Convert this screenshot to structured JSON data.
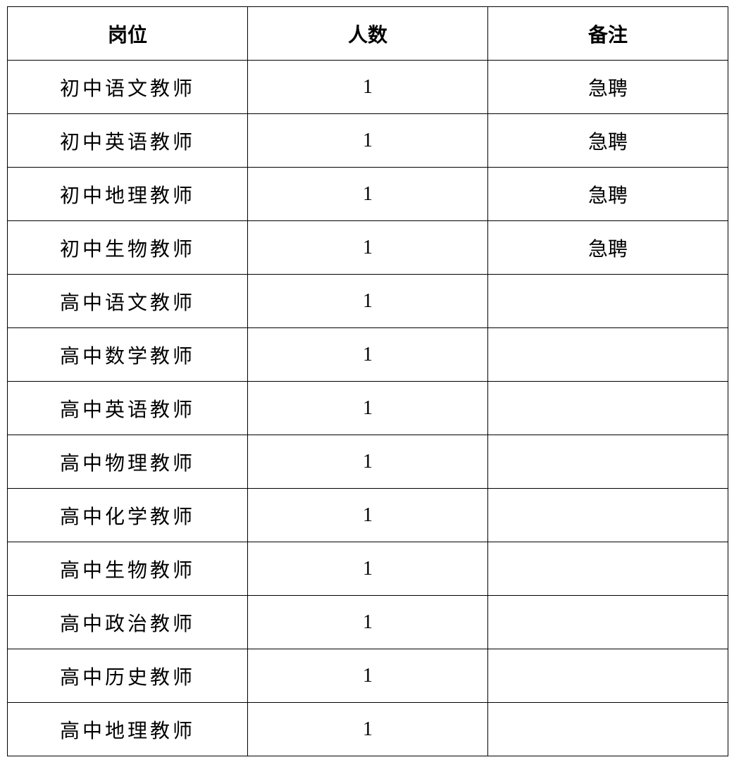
{
  "table": {
    "headers": [
      "岗位",
      "人数",
      "备注"
    ],
    "rows": [
      {
        "position": "初中语文教师",
        "count": "1",
        "note": "急聘"
      },
      {
        "position": "初中英语教师",
        "count": "1",
        "note": "急聘"
      },
      {
        "position": "初中地理教师",
        "count": "1",
        "note": "急聘"
      },
      {
        "position": "初中生物教师",
        "count": "1",
        "note": "急聘"
      },
      {
        "position": "高中语文教师",
        "count": "1",
        "note": ""
      },
      {
        "position": "高中数学教师",
        "count": "1",
        "note": ""
      },
      {
        "position": "高中英语教师",
        "count": "1",
        "note": ""
      },
      {
        "position": "高中物理教师",
        "count": "1",
        "note": ""
      },
      {
        "position": "高中化学教师",
        "count": "1",
        "note": ""
      },
      {
        "position": "高中生物教师",
        "count": "1",
        "note": ""
      },
      {
        "position": "高中政治教师",
        "count": "1",
        "note": ""
      },
      {
        "position": "高中历史教师",
        "count": "1",
        "note": ""
      },
      {
        "position": "高中地理教师",
        "count": "1",
        "note": ""
      }
    ]
  }
}
